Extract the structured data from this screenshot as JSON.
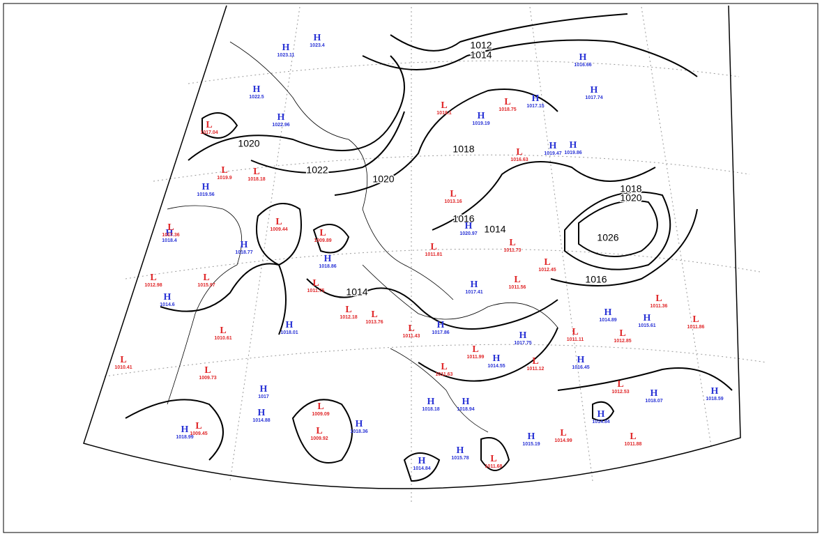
{
  "map": {
    "isobar_labels": [
      "1012",
      "1014",
      "1020",
      "1022",
      "1020",
      "1018",
      "1016",
      "1014",
      "1018",
      "1020",
      "1026",
      "1016",
      "1014"
    ],
    "highs": [
      {
        "letter": "H",
        "pressure": "1023.11"
      },
      {
        "letter": "H",
        "pressure": "1023.4"
      },
      {
        "letter": "H",
        "pressure": "1022.5"
      },
      {
        "letter": "H",
        "pressure": "1022.96"
      },
      {
        "letter": "H",
        "pressure": "1019.19"
      },
      {
        "letter": "H",
        "pressure": "1017.15"
      },
      {
        "letter": "H",
        "pressure": "1017.74"
      },
      {
        "letter": "H",
        "pressure": "1016.66"
      },
      {
        "letter": "H",
        "pressure": "1019.86"
      },
      {
        "letter": "H",
        "pressure": "1019.47"
      },
      {
        "letter": "H",
        "pressure": "1018.77"
      },
      {
        "letter": "H",
        "pressure": "1019.56"
      },
      {
        "letter": "H",
        "pressure": "1018.4"
      },
      {
        "letter": "H",
        "pressure": "1014.6"
      },
      {
        "letter": "H",
        "pressure": "1018.01"
      },
      {
        "letter": "H",
        "pressure": "1017"
      },
      {
        "letter": "H",
        "pressure": "1014.88"
      },
      {
        "letter": "H",
        "pressure": "1018.36"
      },
      {
        "letter": "H",
        "pressure": "1018.94"
      },
      {
        "letter": "H",
        "pressure": "1018.18"
      },
      {
        "letter": "H",
        "pressure": "1017.86"
      },
      {
        "letter": "H",
        "pressure": "1014.55"
      },
      {
        "letter": "H",
        "pressure": "1017.75"
      },
      {
        "letter": "H",
        "pressure": "1017.41"
      },
      {
        "letter": "H",
        "pressure": "1014.89"
      },
      {
        "letter": "H",
        "pressure": "1015.61"
      },
      {
        "letter": "H",
        "pressure": "1016.45"
      },
      {
        "letter": "H",
        "pressure": "1018.07"
      },
      {
        "letter": "H",
        "pressure": "1018.59"
      },
      {
        "letter": "H",
        "pressure": "1014.84"
      },
      {
        "letter": "H",
        "pressure": "1015.19"
      },
      {
        "letter": "H",
        "pressure": "1014.84"
      },
      {
        "letter": "H",
        "pressure": "1015.78"
      },
      {
        "letter": "H",
        "pressure": "1018.86"
      },
      {
        "letter": "H",
        "pressure": "1020.97"
      },
      {
        "letter": "H",
        "pressure": "1018.99"
      }
    ],
    "lows": [
      {
        "letter": "L",
        "pressure": "1017.04"
      },
      {
        "letter": "L",
        "pressure": "1019.9"
      },
      {
        "letter": "L",
        "pressure": "1018.18"
      },
      {
        "letter": "L",
        "pressure": "1017.36"
      },
      {
        "letter": "L",
        "pressure": "1009.44"
      },
      {
        "letter": "L",
        "pressure": "1009.89"
      },
      {
        "letter": "L",
        "pressure": "1011.75"
      },
      {
        "letter": "L",
        "pressure": "1012.18"
      },
      {
        "letter": "L",
        "pressure": "1013.76"
      },
      {
        "letter": "L",
        "pressure": "1012.98"
      },
      {
        "letter": "L",
        "pressure": "1015.97"
      },
      {
        "letter": "L",
        "pressure": "1010.61"
      },
      {
        "letter": "L",
        "pressure": "1009.73"
      },
      {
        "letter": "L",
        "pressure": "1010.41"
      },
      {
        "letter": "L",
        "pressure": "1009.45"
      },
      {
        "letter": "L",
        "pressure": "1009.09"
      },
      {
        "letter": "L",
        "pressure": "1009.92"
      },
      {
        "letter": "L",
        "pressure": "1019.1"
      },
      {
        "letter": "L",
        "pressure": "1018.75"
      },
      {
        "letter": "L",
        "pressure": "1016.63"
      },
      {
        "letter": "L",
        "pressure": "1013.16"
      },
      {
        "letter": "L",
        "pressure": "1011.73"
      },
      {
        "letter": "L",
        "pressure": "1011.81"
      },
      {
        "letter": "L",
        "pressure": "1011.56"
      },
      {
        "letter": "L",
        "pressure": "1012.45"
      },
      {
        "letter": "L",
        "pressure": "1011.43"
      },
      {
        "letter": "L",
        "pressure": "1011.99"
      },
      {
        "letter": "L",
        "pressure": "1011.12"
      },
      {
        "letter": "L",
        "pressure": "1011.11"
      },
      {
        "letter": "L",
        "pressure": "1012.85"
      },
      {
        "letter": "L",
        "pressure": "1011.36"
      },
      {
        "letter": "L",
        "pressure": "1011.86"
      },
      {
        "letter": "L",
        "pressure": "1012.53"
      },
      {
        "letter": "L",
        "pressure": "1011.68"
      },
      {
        "letter": "L",
        "pressure": "1014.99"
      },
      {
        "letter": "L",
        "pressure": "1011.88"
      },
      {
        "letter": "L",
        "pressure": "1011.63"
      }
    ]
  }
}
